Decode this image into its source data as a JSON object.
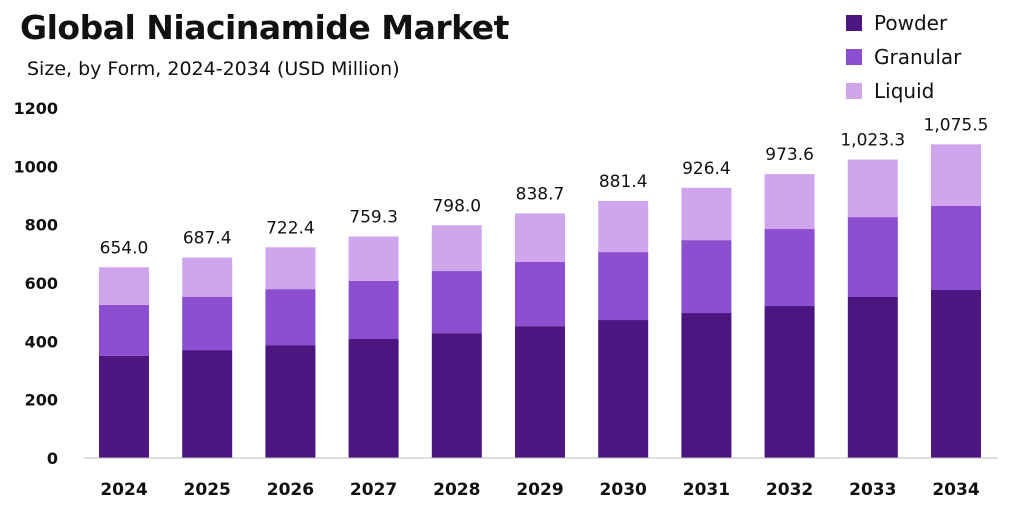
{
  "chart_data": {
    "type": "bar",
    "stacked": true,
    "title": "Global Niacinamide Market",
    "subtitle": "Size, by Form, 2024-2034 (USD Million)",
    "xlabel": "",
    "ylabel": "",
    "ylim": [
      0,
      1200
    ],
    "yticks": [
      0,
      200,
      400,
      600,
      800,
      1000,
      1200
    ],
    "grid": false,
    "legend_position": "top-right",
    "categories": [
      "2024",
      "2025",
      "2026",
      "2027",
      "2028",
      "2029",
      "2030",
      "2031",
      "2032",
      "2033",
      "2034"
    ],
    "series": [
      {
        "name": "Powder",
        "color": "#4b1680",
        "values": [
          350,
          370,
          387,
          408,
          428,
          452,
          473,
          497,
          521,
          552,
          576
        ]
      },
      {
        "name": "Granular",
        "color": "#8b4fcf",
        "values": [
          175,
          182,
          192,
          199,
          213,
          220,
          233,
          250,
          264,
          274,
          288
        ]
      },
      {
        "name": "Liquid",
        "color": "#cfa6ec",
        "values": [
          129,
          135.4,
          143.4,
          152.3,
          157,
          166.7,
          175.4,
          179.4,
          188.6,
          197.3,
          211.5
        ]
      }
    ],
    "totals": [
      654.0,
      687.4,
      722.4,
      759.3,
      798.0,
      838.7,
      881.4,
      926.4,
      973.6,
      1023.3,
      1075.5
    ],
    "total_labels": [
      "654.0",
      "687.4",
      "722.4",
      "759.3",
      "798.0",
      "838.7",
      "881.4",
      "926.4",
      "973.6",
      "1,023.3",
      "1,075.5"
    ]
  }
}
